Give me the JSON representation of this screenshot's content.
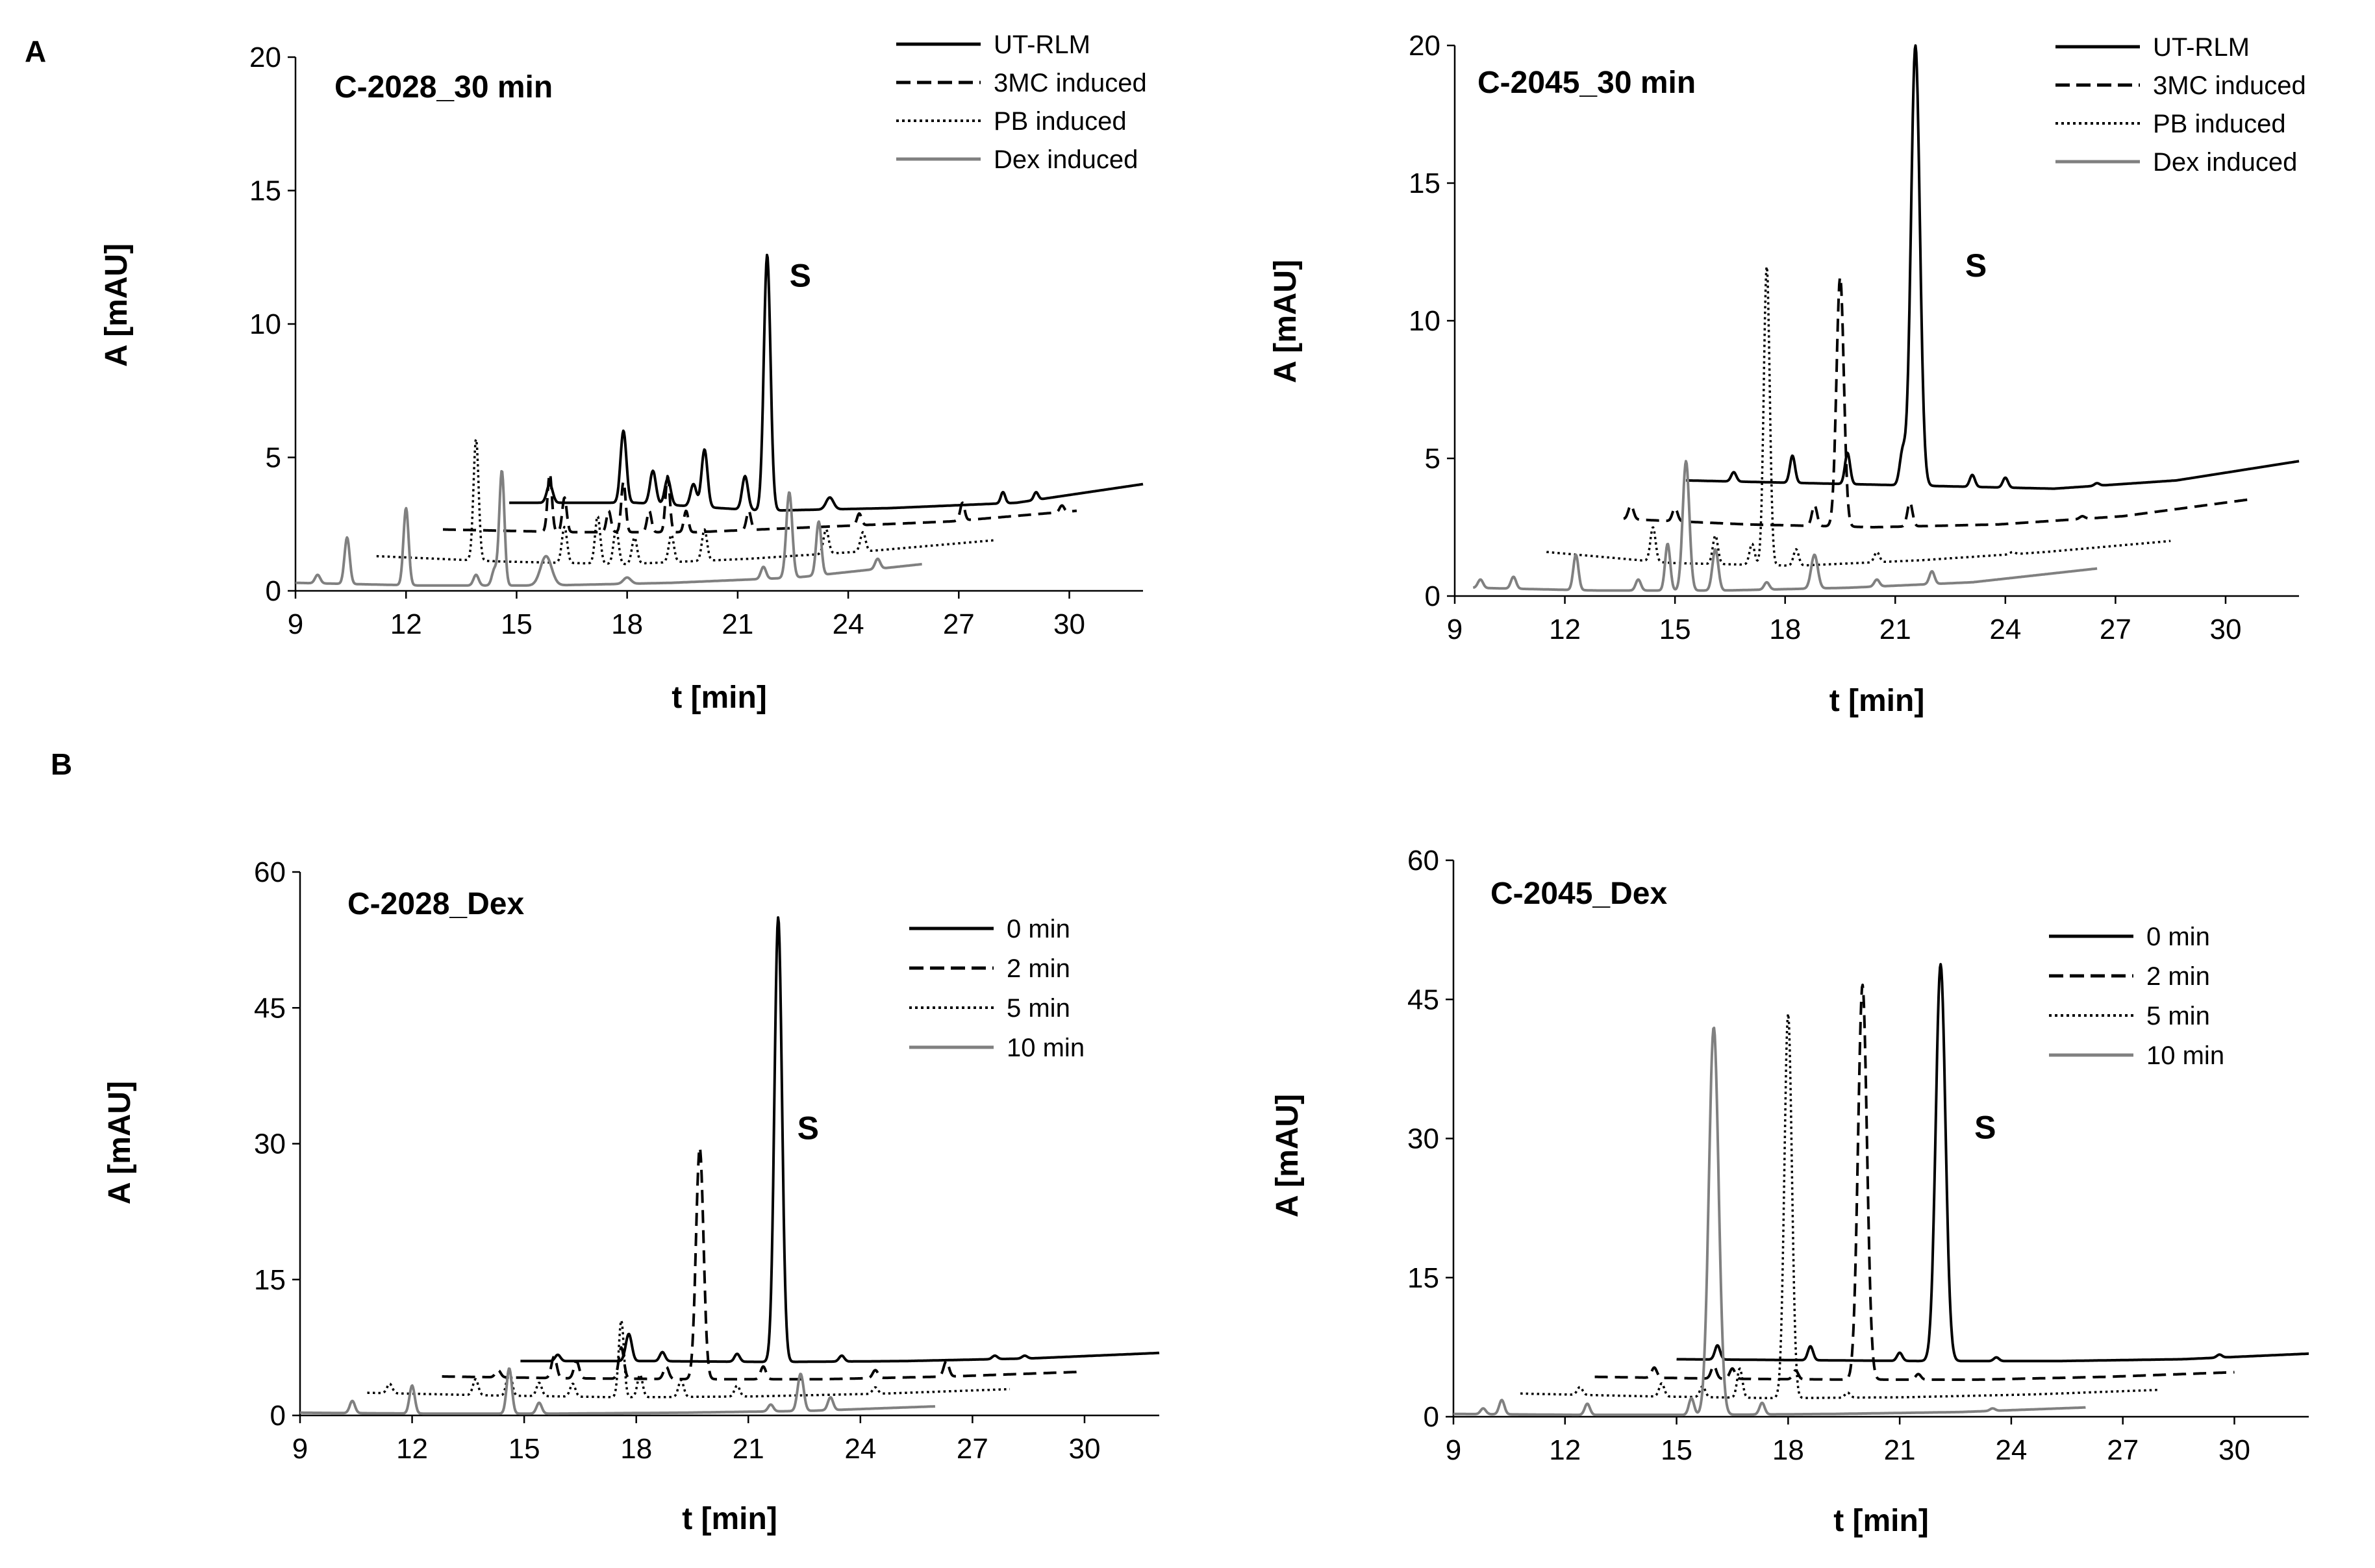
{
  "panel_labels": [
    "A",
    "B"
  ],
  "colors": {
    "black": "#000000",
    "gray": "#808080"
  },
  "chart_data": [
    {
      "type": "line",
      "panel": "A",
      "title": "C-2028_30 min",
      "xlabel": "t [min]",
      "ylabel": "A [mAU]",
      "xlim": [
        9,
        32
      ],
      "ylim": [
        0,
        20
      ],
      "xticks": [
        "9",
        "12",
        "15",
        "18",
        "21",
        "24",
        "27",
        "30"
      ],
      "yticks": [
        "0",
        "5",
        "10",
        "15",
        "20"
      ],
      "peak_label": {
        "text": "S",
        "x": 22.7,
        "y": 11.4
      },
      "legend_position": "top-right",
      "series": [
        {
          "name": "UT-RLM",
          "style": "solid",
          "color": "#000000",
          "x_range": [
            14.8,
            32
          ],
          "baseline": [
            3.3,
            3.3,
            3.0,
            3.1,
            3.3,
            4.0
          ],
          "peaks": [
            [
              15.9,
              4.0,
              0.08
            ],
            [
              17.9,
              6.0,
              0.08
            ],
            [
              18.7,
              4.5,
              0.08
            ],
            [
              19.1,
              4.2,
              0.08
            ],
            [
              19.8,
              4.0,
              0.08
            ],
            [
              20.1,
              5.3,
              0.08
            ],
            [
              21.2,
              4.3,
              0.08
            ],
            [
              21.8,
              12.6,
              0.09
            ],
            [
              23.5,
              3.5,
              0.1
            ],
            [
              28.2,
              3.7,
              0.06
            ],
            [
              29.1,
              3.7,
              0.06
            ]
          ]
        },
        {
          "name": "3MC induced",
          "style": "dashed",
          "color": "#000000",
          "x_range": [
            13.0,
            30.2
          ],
          "baseline": [
            2.3,
            2.2,
            2.2,
            2.4,
            2.6,
            3.0
          ],
          "peaks": [
            [
              15.9,
              4.4,
              0.06
            ],
            [
              16.3,
              3.5,
              0.06
            ],
            [
              17.5,
              3.0,
              0.06
            ],
            [
              17.9,
              4.1,
              0.06
            ],
            [
              18.6,
              3.0,
              0.06
            ],
            [
              19.1,
              4.3,
              0.06
            ],
            [
              19.6,
              3.0,
              0.06
            ],
            [
              21.3,
              3.0,
              0.06
            ],
            [
              24.3,
              2.9,
              0.06
            ],
            [
              27.1,
              3.3,
              0.06
            ],
            [
              29.8,
              3.2,
              0.06
            ]
          ]
        },
        {
          "name": "PB induced",
          "style": "dotted",
          "color": "#000000",
          "x_range": [
            11.2,
            28.0
          ],
          "baseline": [
            1.3,
            1.1,
            1.0,
            1.2,
            1.5,
            1.9
          ],
          "peaks": [
            [
              13.9,
              5.7,
              0.07
            ],
            [
              16.3,
              2.4,
              0.07
            ],
            [
              17.2,
              2.8,
              0.07
            ],
            [
              17.7,
              2.3,
              0.07
            ],
            [
              18.2,
              2.0,
              0.07
            ],
            [
              19.2,
              2.1,
              0.07
            ],
            [
              20.1,
              2.3,
              0.07
            ],
            [
              23.4,
              2.3,
              0.07
            ],
            [
              24.4,
              2.2,
              0.07
            ]
          ]
        },
        {
          "name": "Dex induced",
          "style": "solid",
          "color": "#808080",
          "x_range": [
            9.0,
            26.0
          ],
          "baseline": [
            0.3,
            0.2,
            0.2,
            0.3,
            0.5,
            1.0
          ],
          "peaks": [
            [
              9.6,
              0.6,
              0.07
            ],
            [
              10.4,
              2.0,
              0.07
            ],
            [
              12.0,
              3.1,
              0.07
            ],
            [
              13.9,
              0.6,
              0.07
            ],
            [
              14.4,
              0.8,
              0.07
            ],
            [
              14.6,
              4.5,
              0.07
            ],
            [
              15.8,
              1.3,
              0.15
            ],
            [
              18.0,
              0.5,
              0.1
            ],
            [
              21.7,
              0.9,
              0.07
            ],
            [
              22.4,
              3.7,
              0.08
            ],
            [
              23.2,
              2.6,
              0.07
            ],
            [
              24.8,
              1.2,
              0.07
            ]
          ]
        }
      ]
    },
    {
      "type": "line",
      "panel": "A",
      "title": "C-2045_30 min",
      "xlabel": "t [min]",
      "ylabel": "A [mAU]",
      "xlim": [
        9,
        32
      ],
      "ylim": [
        0,
        20
      ],
      "xticks": [
        "9",
        "12",
        "15",
        "18",
        "21",
        "24",
        "27",
        "30"
      ],
      "yticks": [
        "0",
        "5",
        "10",
        "15",
        "20"
      ],
      "peak_label": {
        "text": "S",
        "x": 23.2,
        "y": 11.6
      },
      "legend_position": "top-right",
      "series": [
        {
          "name": "UT-RLM",
          "style": "solid",
          "color": "#000000",
          "x_range": [
            15.3,
            32
          ],
          "baseline": [
            4.2,
            4.1,
            4.0,
            3.9,
            4.2,
            4.9
          ],
          "peaks": [
            [
              16.6,
              4.5,
              0.07
            ],
            [
              18.2,
              5.1,
              0.07
            ],
            [
              19.7,
              5.2,
              0.07
            ],
            [
              21.2,
              5.2,
              0.08
            ],
            [
              21.55,
              20.0,
              0.12
            ],
            [
              23.1,
              4.4,
              0.07
            ],
            [
              24.0,
              4.3,
              0.07
            ],
            [
              26.5,
              4.1,
              0.07
            ]
          ]
        },
        {
          "name": "3MC induced",
          "style": "dashed",
          "color": "#000000",
          "x_range": [
            13.6,
            30.6
          ],
          "baseline": [
            2.8,
            2.6,
            2.5,
            2.6,
            2.9,
            3.5
          ],
          "peaks": [
            [
              13.8,
              3.3,
              0.07
            ],
            [
              15.0,
              3.2,
              0.07
            ],
            [
              18.8,
              3.3,
              0.07
            ],
            [
              19.5,
              11.6,
              0.1
            ],
            [
              21.4,
              3.4,
              0.07
            ],
            [
              26.1,
              2.9,
              0.07
            ]
          ]
        },
        {
          "name": "PB induced",
          "style": "dotted",
          "color": "#000000",
          "x_range": [
            11.5,
            28.5
          ],
          "baseline": [
            1.6,
            1.2,
            1.1,
            1.3,
            1.6,
            2.0
          ],
          "peaks": [
            [
              14.4,
              2.5,
              0.07
            ],
            [
              16.1,
              2.2,
              0.07
            ],
            [
              17.1,
              1.9,
              0.07
            ],
            [
              17.5,
              12.0,
              0.08
            ],
            [
              18.3,
              1.7,
              0.07
            ],
            [
              20.5,
              1.6,
              0.07
            ],
            [
              24.2,
              1.6,
              0.07
            ]
          ]
        },
        {
          "name": "Dex induced",
          "style": "solid",
          "color": "#808080",
          "x_range": [
            9.5,
            26.5
          ],
          "baseline": [
            0.3,
            0.2,
            0.2,
            0.3,
            0.5,
            1.0
          ],
          "peaks": [
            [
              9.7,
              0.6,
              0.07
            ],
            [
              10.6,
              0.7,
              0.07
            ],
            [
              12.3,
              1.5,
              0.07
            ],
            [
              14.0,
              0.6,
              0.07
            ],
            [
              14.8,
              1.9,
              0.07
            ],
            [
              15.3,
              4.9,
              0.09
            ],
            [
              16.1,
              1.7,
              0.08
            ],
            [
              17.5,
              0.5,
              0.07
            ],
            [
              18.8,
              1.5,
              0.09
            ],
            [
              20.5,
              0.6,
              0.07
            ],
            [
              22.0,
              0.9,
              0.07
            ]
          ]
        }
      ]
    },
    {
      "type": "line",
      "panel": "B",
      "title": "C-2028_Dex",
      "xlabel": "t [min]",
      "ylabel": "A [mAU]",
      "xlim": [
        9,
        32
      ],
      "ylim": [
        0,
        60
      ],
      "xticks": [
        "9",
        "12",
        "15",
        "18",
        "21",
        "24",
        "27",
        "30"
      ],
      "yticks": [
        "0",
        "15",
        "30",
        "45",
        "60"
      ],
      "peak_label": {
        "text": "S",
        "x": 22.6,
        "y": 30.5
      },
      "legend_position": "top-right",
      "series": [
        {
          "name": "0 min",
          "style": "solid",
          "color": "#000000",
          "x_range": [
            14.9,
            32
          ],
          "baseline": [
            6.0,
            6.0,
            5.9,
            6.0,
            6.3,
            6.9
          ],
          "peaks": [
            [
              15.9,
              6.7,
              0.07
            ],
            [
              17.8,
              9.0,
              0.08
            ],
            [
              18.7,
              7.0,
              0.07
            ],
            [
              20.7,
              6.8,
              0.07
            ],
            [
              21.8,
              55.0,
              0.1
            ],
            [
              23.5,
              6.6,
              0.07
            ],
            [
              27.6,
              6.6,
              0.07
            ],
            [
              28.4,
              6.6,
              0.07
            ]
          ]
        },
        {
          "name": "2 min",
          "style": "dashed",
          "color": "#000000",
          "x_range": [
            12.8,
            29.8
          ],
          "baseline": [
            4.3,
            4.1,
            4.0,
            4.0,
            4.3,
            4.8
          ],
          "peaks": [
            [
              14.3,
              5.0,
              0.07
            ],
            [
              15.8,
              6.5,
              0.07
            ],
            [
              16.4,
              6.0,
              0.07
            ],
            [
              17.6,
              7.5,
              0.07
            ],
            [
              18.8,
              5.4,
              0.07
            ],
            [
              19.7,
              29.6,
              0.1
            ],
            [
              21.4,
              5.4,
              0.07
            ],
            [
              24.4,
              5.0,
              0.07
            ],
            [
              26.3,
              6.0,
              0.07
            ]
          ]
        },
        {
          "name": "5 min",
          "style": "dotted",
          "color": "#000000",
          "x_range": [
            10.8,
            28.0
          ],
          "baseline": [
            2.5,
            2.2,
            2.0,
            2.1,
            2.4,
            2.9
          ],
          "peaks": [
            [
              11.4,
              3.5,
              0.07
            ],
            [
              13.7,
              4.0,
              0.07
            ],
            [
              14.6,
              5.0,
              0.07
            ],
            [
              15.4,
              3.6,
              0.07
            ],
            [
              16.3,
              3.5,
              0.07
            ],
            [
              17.6,
              10.5,
              0.07
            ],
            [
              18.1,
              4.5,
              0.07
            ],
            [
              19.2,
              3.9,
              0.07
            ],
            [
              20.7,
              3.3,
              0.07
            ],
            [
              24.4,
              3.1,
              0.07
            ]
          ]
        },
        {
          "name": "10 min",
          "style": "solid",
          "color": "#808080",
          "x_range": [
            9.0,
            26.0
          ],
          "baseline": [
            0.3,
            0.2,
            0.2,
            0.3,
            0.5,
            1.0
          ],
          "peaks": [
            [
              10.4,
              1.6,
              0.07
            ],
            [
              12.0,
              3.3,
              0.07
            ],
            [
              14.6,
              5.2,
              0.07
            ],
            [
              15.4,
              1.4,
              0.07
            ],
            [
              21.6,
              1.2,
              0.07
            ],
            [
              22.4,
              4.6,
              0.08
            ],
            [
              23.2,
              2.0,
              0.07
            ]
          ]
        }
      ]
    },
    {
      "type": "line",
      "panel": "B",
      "title": "C-2045_Dex",
      "xlabel": "t [min]",
      "ylabel": "A [mAU]",
      "xlim": [
        9,
        32
      ],
      "ylim": [
        0,
        60
      ],
      "xticks": [
        "9",
        "12",
        "15",
        "18",
        "21",
        "24",
        "27",
        "30"
      ],
      "yticks": [
        "0",
        "15",
        "30",
        "45",
        "60"
      ],
      "peak_label": {
        "text": "S",
        "x": 23.3,
        "y": 30.0
      },
      "legend_position": "top-right",
      "series": [
        {
          "name": "0 min",
          "style": "solid",
          "color": "#000000",
          "x_range": [
            15.0,
            32
          ],
          "baseline": [
            6.2,
            6.1,
            6.0,
            6.0,
            6.2,
            6.8
          ],
          "peaks": [
            [
              16.1,
              7.7,
              0.07
            ],
            [
              18.6,
              7.6,
              0.07
            ],
            [
              21.0,
              6.9,
              0.07
            ],
            [
              22.1,
              48.8,
              0.13
            ],
            [
              23.6,
              6.4,
              0.07
            ],
            [
              29.6,
              6.7,
              0.07
            ]
          ]
        },
        {
          "name": "2 min",
          "style": "dashed",
          "color": "#000000",
          "x_range": [
            12.8,
            30.0
          ],
          "baseline": [
            4.3,
            4.1,
            4.0,
            4.0,
            4.3,
            4.8
          ],
          "peaks": [
            [
              14.4,
              5.3,
              0.07
            ],
            [
              16.0,
              5.5,
              0.07
            ],
            [
              16.5,
              5.2,
              0.07
            ],
            [
              18.2,
              5.0,
              0.07
            ],
            [
              20.0,
              46.6,
              0.12
            ],
            [
              21.5,
              4.6,
              0.07
            ]
          ]
        },
        {
          "name": "5 min",
          "style": "dotted",
          "color": "#000000",
          "x_range": [
            10.8,
            28.0
          ],
          "baseline": [
            2.5,
            2.2,
            2.0,
            2.1,
            2.4,
            2.9
          ],
          "peaks": [
            [
              12.4,
              3.2,
              0.07
            ],
            [
              14.6,
              3.6,
              0.07
            ],
            [
              15.7,
              3.3,
              0.07
            ],
            [
              16.7,
              5.2,
              0.07
            ],
            [
              18.0,
              43.5,
              0.1
            ],
            [
              19.6,
              2.6,
              0.07
            ]
          ]
        },
        {
          "name": "10 min",
          "style": "solid",
          "color": "#808080",
          "x_range": [
            9.0,
            26.0
          ],
          "baseline": [
            0.3,
            0.2,
            0.2,
            0.3,
            0.5,
            1.0
          ],
          "peaks": [
            [
              9.8,
              0.9,
              0.07
            ],
            [
              10.3,
              1.8,
              0.07
            ],
            [
              12.6,
              1.4,
              0.07
            ],
            [
              15.4,
              2.0,
              0.07
            ],
            [
              16.0,
              42.0,
              0.13
            ],
            [
              17.3,
              1.5,
              0.07
            ],
            [
              23.5,
              0.9,
              0.07
            ]
          ]
        }
      ]
    }
  ]
}
